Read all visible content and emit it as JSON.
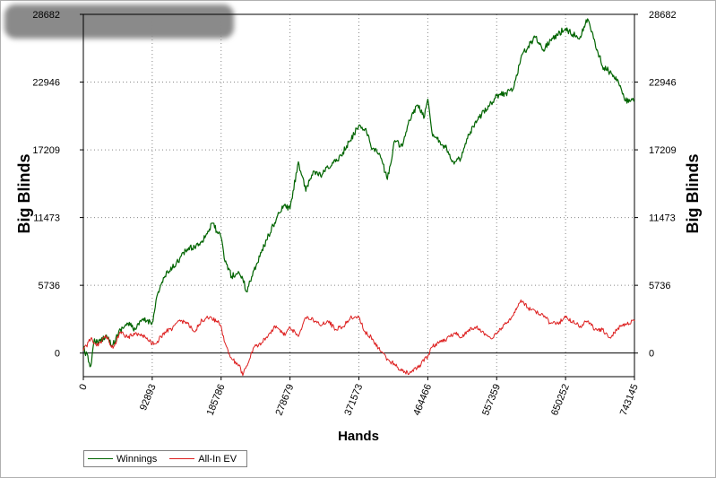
{
  "chart_data": {
    "type": "line",
    "title": "",
    "xlabel": "Hands",
    "ylabel": "Big Blinds",
    "x_ticks": [
      "0",
      "92893",
      "185786",
      "278679",
      "371573",
      "464466",
      "557359",
      "650252",
      "743145"
    ],
    "y_ticks": [
      "0",
      "5736",
      "11473",
      "17209",
      "22946",
      "28682"
    ],
    "xlim": [
      0,
      743145
    ],
    "ylim": [
      -2000,
      28682
    ],
    "grid": true,
    "legend_position": "bottom-left",
    "series": [
      {
        "name": "Winnings",
        "color": "#006400",
        "x": [
          0,
          10000,
          15000,
          20000,
          30000,
          40000,
          50000,
          60000,
          70000,
          80000,
          92893,
          100000,
          110000,
          120000,
          130000,
          140000,
          150000,
          160000,
          170000,
          175000,
          180000,
          185786,
          190000,
          200000,
          210000,
          215000,
          220000,
          230000,
          240000,
          250000,
          260000,
          270000,
          278679,
          290000,
          300000,
          310000,
          320000,
          330000,
          340000,
          350000,
          360000,
          371573,
          380000,
          390000,
          400000,
          410000,
          420000,
          430000,
          440000,
          450000,
          460000,
          464466,
          470000,
          480000,
          490000,
          500000,
          510000,
          520000,
          530000,
          540000,
          550000,
          557359,
          570000,
          580000,
          590000,
          600000,
          610000,
          620000,
          630000,
          650252,
          660000,
          670000,
          680000,
          690000,
          700000,
          710000,
          720000,
          730000,
          743145
        ],
        "values": [
          500,
          -1100,
          1200,
          800,
          1500,
          700,
          2000,
          2500,
          2000,
          2800,
          2600,
          5000,
          6500,
          7200,
          8000,
          8800,
          9000,
          9500,
          10500,
          11000,
          10300,
          9800,
          8000,
          6500,
          6800,
          6300,
          5200,
          7000,
          8500,
          10000,
          11300,
          12500,
          12200,
          16200,
          13700,
          15400,
          15000,
          15700,
          16200,
          17000,
          18000,
          19300,
          19000,
          17300,
          16800,
          14700,
          18000,
          17500,
          19700,
          21000,
          20000,
          21500,
          18700,
          18000,
          17300,
          16000,
          16600,
          18500,
          19500,
          20500,
          21200,
          21800,
          22000,
          22400,
          25000,
          26000,
          26800,
          25700,
          26500,
          27500,
          27000,
          26800,
          28300,
          26300,
          24300,
          23800,
          23200,
          21400,
          21300
        ]
      },
      {
        "name": "All-In EV",
        "color": "#dd1f1f",
        "x": [
          0,
          10000,
          20000,
          30000,
          40000,
          50000,
          60000,
          70000,
          80000,
          92893,
          100000,
          110000,
          120000,
          130000,
          140000,
          150000,
          160000,
          170000,
          180000,
          185786,
          190000,
          200000,
          210000,
          215000,
          220000,
          230000,
          240000,
          250000,
          260000,
          270000,
          278679,
          290000,
          300000,
          310000,
          320000,
          330000,
          340000,
          350000,
          360000,
          371573,
          380000,
          390000,
          400000,
          410000,
          420000,
          430000,
          440000,
          450000,
          464466,
          470000,
          480000,
          490000,
          500000,
          510000,
          520000,
          530000,
          540000,
          550000,
          557359,
          570000,
          580000,
          590000,
          600000,
          610000,
          620000,
          630000,
          640000,
          650252,
          660000,
          670000,
          680000,
          690000,
          700000,
          710000,
          720000,
          730000,
          743145
        ],
        "values": [
          200,
          1200,
          600,
          1500,
          400,
          1800,
          1300,
          1700,
          1500,
          800,
          1000,
          1800,
          2000,
          2800,
          2500,
          1800,
          2800,
          3000,
          2700,
          2300,
          1000,
          -500,
          -1000,
          -1900,
          -1100,
          500,
          800,
          1600,
          2300,
          1500,
          2200,
          1400,
          3000,
          2800,
          2300,
          2700,
          2000,
          2200,
          3000,
          3000,
          1800,
          1200,
          200,
          -500,
          -1000,
          -1500,
          -1700,
          -1300,
          -300,
          500,
          900,
          1200,
          1700,
          1300,
          2000,
          2200,
          1700,
          1200,
          1700,
          2500,
          3200,
          4500,
          3800,
          3500,
          3200,
          2500,
          2500,
          3000,
          2700,
          2300,
          2700,
          2000,
          2000,
          1300,
          2000,
          2500,
          2700
        ]
      }
    ]
  }
}
